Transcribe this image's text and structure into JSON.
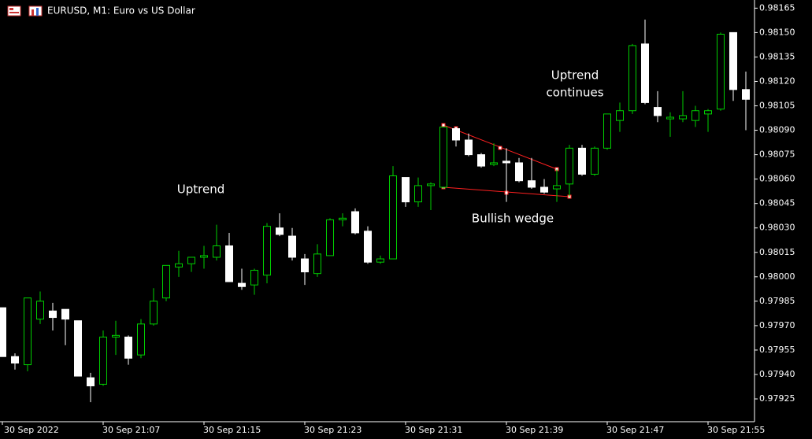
{
  "chart_data": {
    "type": "candlestick",
    "title": "EURUSD, M1:  Euro vs US Dollar",
    "categories": [
      "30 Sep 2022",
      null,
      null,
      null,
      null,
      null,
      null,
      null,
      "30 Sep 21:07",
      null,
      null,
      null,
      null,
      null,
      null,
      null,
      "30 Sep 21:15",
      null,
      null,
      null,
      null,
      null,
      null,
      null,
      "30 Sep 21:23",
      null,
      null,
      null,
      null,
      null,
      null,
      null,
      "30 Sep 21:31",
      null,
      null,
      null,
      null,
      null,
      null,
      null,
      "30 Sep 21:39",
      null,
      null,
      null,
      null,
      null,
      null,
      null,
      "30 Sep 21:47",
      null,
      null,
      null,
      null,
      null,
      null,
      null,
      "30 Sep 21:55",
      null,
      null,
      null
    ],
    "open": [
      0.97981,
      0.97951,
      0.97946,
      0.97974,
      0.97979,
      0.9798,
      0.97973,
      0.97938,
      0.97934,
      0.97963,
      0.97963,
      0.97952,
      0.97971,
      0.97987,
      0.98006,
      0.98008,
      0.98012,
      0.98012,
      0.98019,
      0.97996,
      0.97995,
      0.98001,
      0.9803,
      0.98025,
      0.98011,
      0.98002,
      0.98013,
      0.98035,
      0.9804,
      0.98028,
      0.98009,
      0.98011,
      0.98061,
      0.98046,
      0.98056,
      0.98055,
      0.98091,
      0.98084,
      0.98075,
      0.98069,
      0.98071,
      0.9807,
      0.98059,
      0.98055,
      0.98054,
      0.98057,
      0.98079,
      0.98063,
      0.98079,
      0.98096,
      0.98102,
      0.98143,
      0.98104,
      0.98097,
      0.98097,
      0.98096,
      0.981,
      0.98103,
      0.9815,
      0.98115
    ],
    "high": [
      0.97981,
      0.97953,
      0.97987,
      0.97991,
      0.97984,
      0.9798,
      0.97973,
      0.97941,
      0.97967,
      0.97973,
      0.97964,
      0.97974,
      0.97993,
      0.98007,
      0.98016,
      0.98012,
      0.98019,
      0.98032,
      0.98027,
      0.98005,
      0.98005,
      0.98033,
      0.98039,
      0.9803,
      0.98014,
      0.9802,
      0.98036,
      0.98039,
      0.98042,
      0.98031,
      0.98013,
      0.98068,
      0.98061,
      0.98061,
      0.98058,
      0.98092,
      0.98092,
      0.98088,
      0.98076,
      0.98082,
      0.98079,
      0.98073,
      0.98073,
      0.9806,
      0.98066,
      0.98081,
      0.98081,
      0.9808,
      0.981,
      0.98107,
      0.98143,
      0.98158,
      0.98114,
      0.98101,
      0.98114,
      0.98105,
      0.98103,
      0.9815,
      0.9815,
      0.98126
    ],
    "low": [
      0.97951,
      0.97943,
      0.97942,
      0.97971,
      0.97967,
      0.97958,
      0.97939,
      0.97923,
      0.97933,
      0.97952,
      0.97946,
      0.9795,
      0.9797,
      0.97985,
      0.98,
      0.98003,
      0.98005,
      0.9801,
      0.97997,
      0.97992,
      0.97989,
      0.97996,
      0.98025,
      0.9801,
      0.97995,
      0.98,
      0.98013,
      0.98031,
      0.98026,
      0.98008,
      0.98008,
      0.98011,
      0.98043,
      0.98043,
      0.98041,
      0.98054,
      0.9808,
      0.98074,
      0.98067,
      0.98068,
      0.98046,
      0.98058,
      0.98054,
      0.98051,
      0.98046,
      0.98049,
      0.98062,
      0.98062,
      0.98078,
      0.98089,
      0.981,
      0.98106,
      0.98095,
      0.98086,
      0.98095,
      0.98092,
      0.98089,
      0.98102,
      0.98108,
      0.9809
    ],
    "close": [
      0.97951,
      0.97947,
      0.97987,
      0.97985,
      0.97975,
      0.97974,
      0.97939,
      0.97933,
      0.97963,
      0.97964,
      0.9795,
      0.97971,
      0.97985,
      0.98007,
      0.98008,
      0.98012,
      0.98013,
      0.98019,
      0.97997,
      0.97994,
      0.98004,
      0.98031,
      0.98026,
      0.98012,
      0.98003,
      0.98014,
      0.98035,
      0.98036,
      0.98027,
      0.98009,
      0.98011,
      0.98062,
      0.98046,
      0.98056,
      0.98057,
      0.98092,
      0.98084,
      0.98075,
      0.98068,
      0.9807,
      0.9807,
      0.98059,
      0.98055,
      0.98052,
      0.98056,
      0.98079,
      0.98063,
      0.98079,
      0.981,
      0.98102,
      0.98142,
      0.98107,
      0.98099,
      0.98098,
      0.98099,
      0.98102,
      0.98102,
      0.98149,
      0.98115,
      0.98109
    ],
    "up_color": "#00d000",
    "down_color": "#ffffff",
    "ylim": [
      0.97911,
      0.9817
    ],
    "yticks": [
      0.98165,
      {
        "value": 0.9815,
        "label": "0.98150"
      },
      0.98135,
      {
        "value": 0.9812,
        "label": "0.98120"
      },
      0.98105,
      {
        "value": 0.9809,
        "label": "0.98090"
      },
      0.98075,
      {
        "value": 0.9806,
        "label": "0.98060"
      },
      0.98045,
      {
        "value": 0.9803,
        "label": "0.98030"
      },
      0.98015,
      {
        "value": 0.98,
        "label": "0.98000"
      },
      0.97985,
      {
        "value": 0.9797,
        "label": "0.97970"
      },
      0.97955,
      {
        "value": 0.9794,
        "label": "0.97940"
      },
      0.97925
    ],
    "annotations": [
      {
        "lines": [
          "Uptrend"
        ]
      },
      {
        "lines": [
          "Uptrend",
          "continues"
        ]
      },
      {
        "lines": [
          "Bullish wedge"
        ]
      }
    ]
  }
}
